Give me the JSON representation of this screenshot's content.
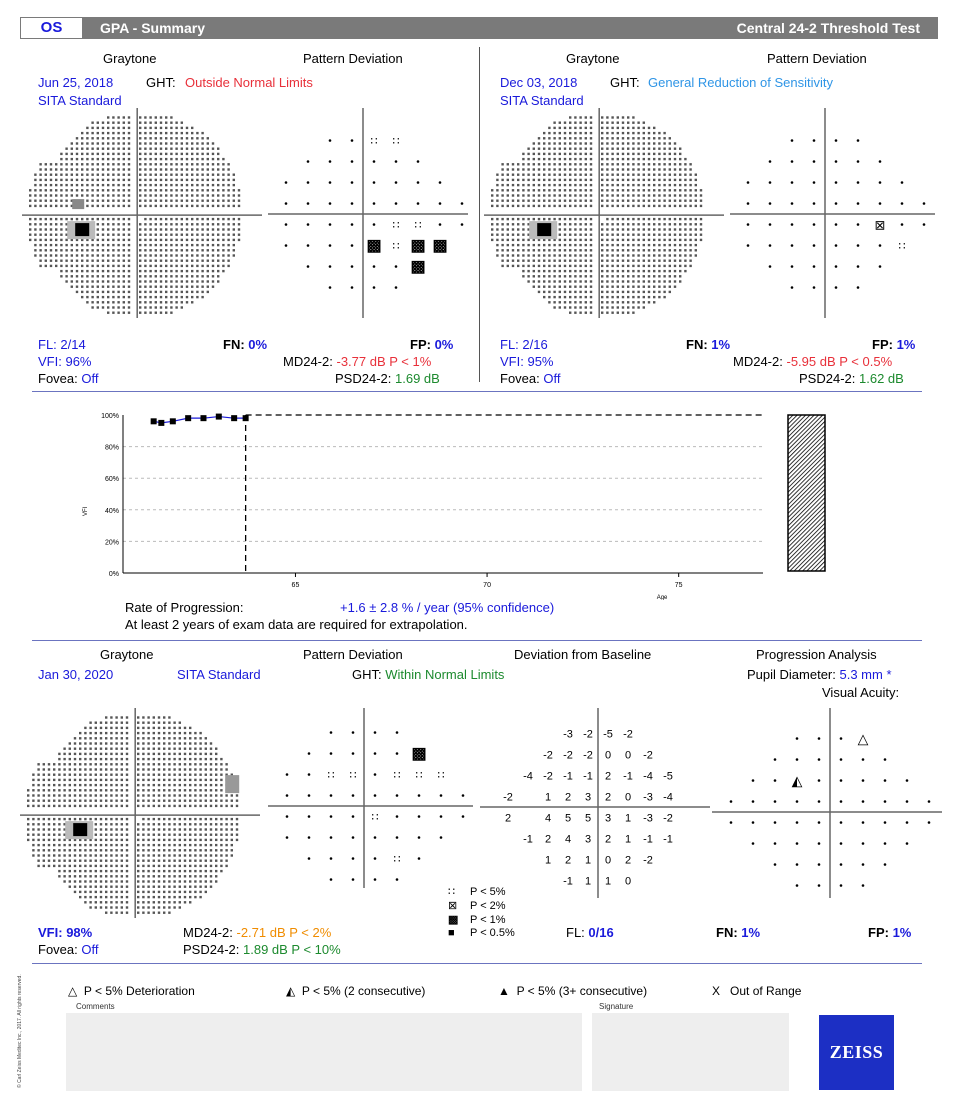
{
  "header": {
    "eye": "OS",
    "title": "GPA - Summary",
    "test": "Central 24-2 Threshold Test"
  },
  "exam1": {
    "graytone_label": "Graytone",
    "pattern_label": "Pattern Deviation",
    "date": "Jun 25, 2018",
    "ght_label": "GHT:",
    "ght_value": "Outside Normal Limits",
    "strategy": "SITA Standard",
    "fl_label": "FL:",
    "fl_value": "2/14",
    "fn_label": "FN:",
    "fn_value": "0%",
    "fp_label": "FP:",
    "fp_value": "0%",
    "vfi_label": "VFI:",
    "vfi_value": "96%",
    "md_label": "MD24-2:",
    "md_value": "-3.77 dB P < 1%",
    "fovea_label": "Fovea:",
    "fovea_value": "Off",
    "psd_label": "PSD24-2:",
    "psd_value": "1.69 dB"
  },
  "exam2": {
    "graytone_label": "Graytone",
    "pattern_label": "Pattern Deviation",
    "date": "Dec 03, 2018",
    "ght_label": "GHT:",
    "ght_value": "General Reduction of Sensitivity",
    "strategy": "SITA Standard",
    "fl_label": "FL:",
    "fl_value": "2/16",
    "fn_label": "FN:",
    "fn_value": "1%",
    "fp_label": "FP:",
    "fp_value": "1%",
    "vfi_label": "VFI:",
    "vfi_value": "95%",
    "md_label": "MD24-2:",
    "md_value": "-5.95 dB P < 0.5%",
    "fovea_label": "Fovea:",
    "fovea_value": "Off",
    "psd_label": "PSD24-2:",
    "psd_value": "1.62 dB"
  },
  "vfi_chart": {
    "y_axis_label": "VFI",
    "y_ticks": [
      "100%",
      "80%",
      "60%",
      "40%",
      "20%",
      "0%"
    ],
    "x_ticks": [
      "65",
      "70",
      "75"
    ],
    "x_axis_label": "Age",
    "rate_label": "Rate of Progression:",
    "rate_value": "+1.6 ± 2.8 % / year (95% confidence)",
    "note": "At least 2 years of exam data are required for extrapolation."
  },
  "chart_data": {
    "type": "scatter",
    "xlabel": "Age",
    "ylabel": "VFI",
    "xlim": [
      60.5,
      77.2
    ],
    "ylim": [
      0,
      100
    ],
    "x_ticks": [
      65,
      70,
      75
    ],
    "y_ticks": [
      0,
      20,
      40,
      60,
      80,
      100
    ],
    "series": [
      {
        "points": [
          [
            61.3,
            96
          ],
          [
            61.5,
            95
          ],
          [
            61.8,
            96
          ],
          [
            62.2,
            98
          ],
          [
            62.6,
            98
          ],
          [
            63.0,
            99
          ],
          [
            63.4,
            98
          ],
          [
            63.7,
            98
          ]
        ]
      }
    ],
    "projection_value": 100,
    "baseline_marker_x": 63.7
  },
  "exam3": {
    "graytone_label": "Graytone",
    "pattern_label": "Pattern Deviation",
    "deviation_label": "Deviation from Baseline",
    "progression_label": "Progression Analysis",
    "date": "Jan 30, 2020",
    "strategy": "SITA Standard",
    "ght_label": "GHT:",
    "ght_value": "Within Normal Limits",
    "pupil_label": "Pupil Diameter:",
    "pupil_value": "5.3 mm *",
    "acuity_label": "Visual Acuity:",
    "vfi_label": "VFI:",
    "vfi_value": "98%",
    "md_label": "MD24-2:",
    "md_value": "-2.71 dB P < 2%",
    "fovea_label": "Fovea:",
    "fovea_value": "Off",
    "psd_label": "PSD24-2:",
    "psd_value": "1.89 dB P < 10%",
    "fl_label": "FL:",
    "fl_value": "0/16",
    "fn_label": "FN:",
    "fn_value": "1%",
    "fp_label": "FP:",
    "fp_value": "1%",
    "deviation_rows": [
      [
        "-3",
        "-2",
        "-5",
        "-2"
      ],
      [
        "-2",
        "-2",
        "-2",
        "0",
        "0",
        "-2"
      ],
      [
        "-4",
        "-2",
        "-1",
        "-1",
        "2",
        "-1",
        "-4",
        "-5"
      ],
      [
        "-2",
        "",
        "1",
        "2",
        "3",
        "2",
        "0",
        "-3",
        "-4"
      ],
      [
        "2",
        "",
        "4",
        "5",
        "5",
        "3",
        "1",
        "-3",
        "-2"
      ],
      [
        "-1",
        "2",
        "4",
        "3",
        "2",
        "1",
        "-1",
        "-1"
      ],
      [
        "1",
        "2",
        "1",
        "0",
        "2",
        "-2"
      ],
      [
        "-1",
        "1",
        "1",
        "0"
      ]
    ]
  },
  "legend": {
    "p5": "P < 5%",
    "p2": "P < 2%",
    "p1": "P < 1%",
    "p05": "P < 0.5%"
  },
  "bottom_legend": {
    "deterioration": "P < 5% Deterioration",
    "two_consecutive": "P < 5% (2 consecutive)",
    "three_consecutive": "P < 5% (3+ consecutive)",
    "out_of_range_symbol": "X",
    "out_of_range": "Out of Range"
  },
  "footer": {
    "comments_label": "Comments",
    "signature_label": "Signature",
    "logo": "ZEISS",
    "copyright": "© Carl Zeiss Meditec Inc., 2017. All rights reserved."
  }
}
